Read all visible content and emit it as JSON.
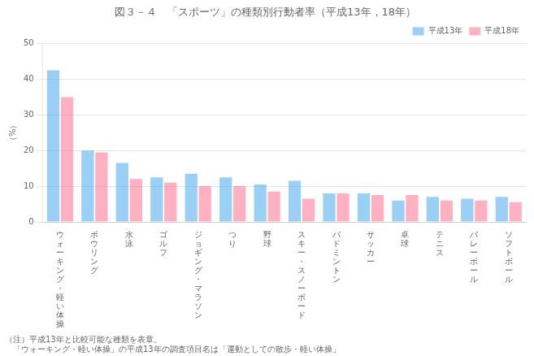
{
  "chart_data": {
    "type": "bar",
    "title": "図３－４　「スポーツ」の種類別行動者率（平成13年，18年）",
    "ylabel": "（%）",
    "categories": [
      "ウォーキング・軽い体操",
      "ボウリング",
      "水泳",
      "ゴルフ",
      "ジョギング・マラソン",
      "つり",
      "野球",
      "スキー・スノーボード",
      "バドミントン",
      "サッカー",
      "卓球",
      "テニス",
      "バレーボール",
      "ソフトボール"
    ],
    "series": [
      {
        "name": "平成13年",
        "values": [
          42.5,
          20.0,
          16.5,
          12.5,
          13.5,
          12.5,
          10.5,
          11.5,
          8.0,
          8.0,
          6.0,
          7.0,
          6.5,
          7.0
        ]
      },
      {
        "name": "平成18年",
        "values": [
          35.0,
          19.5,
          12.0,
          11.0,
          10.0,
          10.0,
          8.5,
          6.5,
          8.0,
          7.5,
          7.5,
          6.0,
          6.0,
          5.5
        ]
      }
    ],
    "ylim": [
      0,
      50
    ],
    "yticks": [
      0,
      10,
      20,
      30,
      40,
      50
    ],
    "grid": true,
    "legend": "upper right",
    "annotations": [
      "（注）平成13年と比較可能な種類を表章。",
      "　「ウォーキング・軽い体操」の平成13年の調査項目名は「運動としての散歩・軽い体操」"
    ]
  }
}
